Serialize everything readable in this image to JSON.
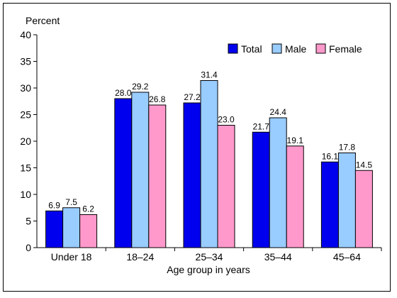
{
  "chart_data": {
    "type": "bar",
    "ylabel": "Percent",
    "xlabel": "Age group in years",
    "ylim": [
      0,
      40
    ],
    "yticks": [
      0,
      5,
      10,
      15,
      20,
      25,
      30,
      35,
      40
    ],
    "categories": [
      "Under 18",
      "18–24",
      "25–34",
      "35–44",
      "45–64"
    ],
    "series": [
      {
        "name": "Total",
        "color": "#0000ee",
        "values": [
          6.9,
          28.0,
          27.2,
          21.7,
          16.1
        ],
        "labels": [
          "6.9",
          "28.0",
          "27.2",
          "21.7",
          "16.1"
        ]
      },
      {
        "name": "Male",
        "color": "#99ccff",
        "values": [
          7.5,
          29.2,
          31.4,
          24.4,
          17.8
        ],
        "labels": [
          "7.5",
          "29.2",
          "31.4",
          "24.4",
          "17.8"
        ]
      },
      {
        "name": "Female",
        "color": "#ff99cc",
        "values": [
          6.2,
          26.8,
          23.0,
          19.1,
          14.5
        ],
        "labels": [
          "6.2",
          "26.8",
          "23.0",
          "19.1",
          "14.5"
        ]
      }
    ],
    "grid": false,
    "legend_position": "top-right"
  }
}
